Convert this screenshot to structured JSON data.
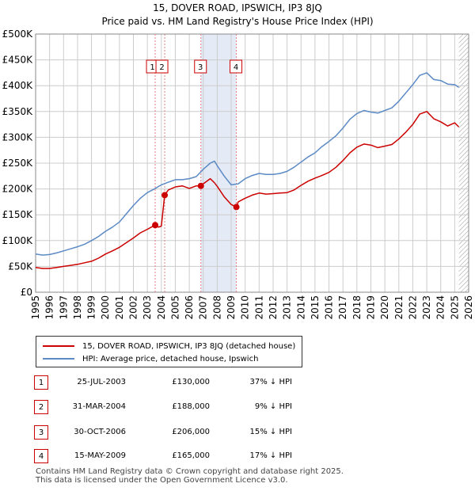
{
  "chart_data": {
    "type": "line",
    "title": "15, DOVER ROAD, IPSWICH, IP3 8JQ",
    "subtitle": "Price paid vs. HM Land Registry's House Price Index (HPI)",
    "xlim": [
      1995,
      2026
    ],
    "ylim": [
      0,
      500000
    ],
    "x_ticks": [
      "1995",
      "1996",
      "1997",
      "1998",
      "1999",
      "2000",
      "2001",
      "2002",
      "2003",
      "2004",
      "2005",
      "2006",
      "2007",
      "2008",
      "2009",
      "2010",
      "2011",
      "2012",
      "2013",
      "2014",
      "2015",
      "2016",
      "2017",
      "2018",
      "2019",
      "2020",
      "2021",
      "2022",
      "2023",
      "2024",
      "2025",
      "2026"
    ],
    "y_ticks": [
      {
        "value": 0,
        "label": "£0"
      },
      {
        "value": 50000,
        "label": "£50K"
      },
      {
        "value": 100000,
        "label": "£100K"
      },
      {
        "value": 150000,
        "label": "£150K"
      },
      {
        "value": 200000,
        "label": "£200K"
      },
      {
        "value": 250000,
        "label": "£250K"
      },
      {
        "value": 300000,
        "label": "£300K"
      },
      {
        "value": 350000,
        "label": "£350K"
      },
      {
        "value": 400000,
        "label": "£400K"
      },
      {
        "value": 450000,
        "label": "£450K"
      },
      {
        "value": 500000,
        "label": "£500K"
      }
    ],
    "series": [
      {
        "name": "15, DOVER ROAD, IPSWICH, IP3 8JQ (detached house)",
        "color": "#cc0000",
        "x": [
          1995.0,
          1995.5,
          1996.0,
          1996.5,
          1997.0,
          1997.5,
          1998.0,
          1998.5,
          1999.0,
          1999.5,
          2000.0,
          2000.5,
          2001.0,
          2001.5,
          2002.0,
          2002.5,
          2003.0,
          2003.56,
          2003.8,
          2004.0,
          2004.24,
          2004.5,
          2005.0,
          2005.5,
          2006.0,
          2006.5,
          2006.83,
          2007.0,
          2007.5,
          2007.8,
          2008.0,
          2008.5,
          2009.0,
          2009.37,
          2009.5,
          2010.0,
          2010.5,
          2011.0,
          2011.5,
          2012.0,
          2012.5,
          2013.0,
          2013.5,
          2014.0,
          2014.5,
          2015.0,
          2015.5,
          2016.0,
          2016.5,
          2017.0,
          2017.5,
          2018.0,
          2018.5,
          2019.0,
          2019.5,
          2020.0,
          2020.5,
          2021.0,
          2021.5,
          2022.0,
          2022.5,
          2023.0,
          2023.5,
          2024.0,
          2024.5,
          2025.0,
          2025.3
        ],
        "values": [
          48000,
          46000,
          46000,
          48000,
          50000,
          52000,
          54000,
          57000,
          60000,
          66000,
          74000,
          80000,
          87000,
          96000,
          105000,
          115000,
          122000,
          130000,
          126000,
          128000,
          188000,
          198000,
          204000,
          206000,
          201000,
          206000,
          206000,
          210000,
          220000,
          212000,
          205000,
          185000,
          170000,
          165000,
          175000,
          182000,
          188000,
          192000,
          190000,
          191000,
          192000,
          193000,
          198000,
          207000,
          215000,
          221000,
          226000,
          232000,
          242000,
          255000,
          270000,
          281000,
          287000,
          285000,
          280000,
          283000,
          286000,
          297000,
          310000,
          325000,
          345000,
          350000,
          336000,
          330000,
          322000,
          328000,
          320000
        ]
      },
      {
        "name": "HPI: Average price, detached house, Ipswich",
        "color": "#5b8ac5",
        "x": [
          1995.0,
          1995.5,
          1996.0,
          1996.5,
          1997.0,
          1997.5,
          1998.0,
          1998.5,
          1999.0,
          1999.5,
          2000.0,
          2000.5,
          2001.0,
          2001.5,
          2002.0,
          2002.5,
          2003.0,
          2003.5,
          2004.0,
          2004.5,
          2005.0,
          2005.5,
          2006.0,
          2006.5,
          2007.0,
          2007.5,
          2007.8,
          2008.0,
          2008.5,
          2009.0,
          2009.5,
          2010.0,
          2010.5,
          2011.0,
          2011.5,
          2012.0,
          2012.5,
          2013.0,
          2013.5,
          2014.0,
          2014.5,
          2015.0,
          2015.5,
          2016.0,
          2016.5,
          2017.0,
          2017.5,
          2018.0,
          2018.5,
          2019.0,
          2019.5,
          2020.0,
          2020.5,
          2021.0,
          2021.5,
          2022.0,
          2022.5,
          2023.0,
          2023.5,
          2024.0,
          2024.5,
          2025.0,
          2025.3
        ],
        "values": [
          74000,
          72000,
          73000,
          76000,
          80000,
          84000,
          88000,
          93000,
          100000,
          108000,
          118000,
          126000,
          136000,
          152000,
          168000,
          182000,
          193000,
          200000,
          208000,
          213000,
          218000,
          218000,
          220000,
          224000,
          238000,
          250000,
          254000,
          245000,
          225000,
          208000,
          210000,
          220000,
          226000,
          230000,
          228000,
          228000,
          230000,
          234000,
          242000,
          252000,
          262000,
          270000,
          282000,
          292000,
          303000,
          318000,
          335000,
          346000,
          352000,
          349000,
          347000,
          352000,
          357000,
          370000,
          386000,
          402000,
          420000,
          425000,
          412000,
          410000,
          403000,
          402000,
          397000
        ]
      }
    ],
    "sales": [
      {
        "id": "1",
        "x": 2003.56,
        "value": 130000
      },
      {
        "id": "2",
        "x": 2004.24,
        "value": 188000
      },
      {
        "id": "3",
        "x": 2006.83,
        "value": 206000
      },
      {
        "id": "4",
        "x": 2009.37,
        "value": 165000
      }
    ],
    "shaded_ranges": [
      [
        2006.83,
        2009.37
      ]
    ],
    "hatch_from": 2025.3,
    "grid": true
  },
  "legend": {
    "property_label": "15, DOVER ROAD, IPSWICH, IP3 8JQ (detached house)",
    "hpi_label": "HPI: Average price, detached house, Ipswich",
    "property_color": "#cc0000",
    "hpi_color": "#5b8ac5"
  },
  "table": [
    {
      "id": "1",
      "date": "25-JUL-2003",
      "price": "£130,000",
      "hpi": "37% ↓ HPI"
    },
    {
      "id": "2",
      "date": "31-MAR-2004",
      "price": "£188,000",
      "hpi": "9% ↓ HPI"
    },
    {
      "id": "3",
      "date": "30-OCT-2006",
      "price": "£206,000",
      "hpi": "15% ↓ HPI"
    },
    {
      "id": "4",
      "date": "15-MAY-2009",
      "price": "£165,000",
      "hpi": "17% ↓ HPI"
    }
  ],
  "footer": {
    "line1": "Contains HM Land Registry data © Crown copyright and database right 2025.",
    "line2": "This data is licensed under the Open Government Licence v3.0."
  }
}
